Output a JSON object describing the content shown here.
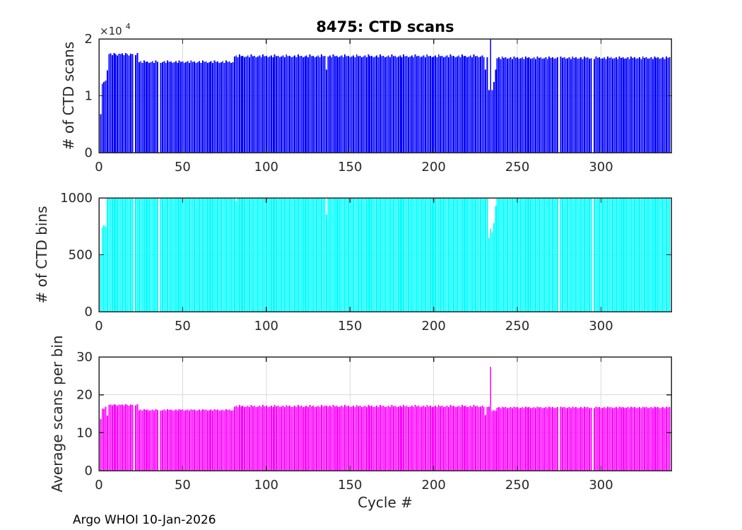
{
  "figure": {
    "credit": "Argo WHOI 10-Jan-2026",
    "background": "#ffffff",
    "colors": {
      "axis": "#262626",
      "grid": "#dbdbdb",
      "tick": "#262626"
    }
  },
  "chart_data": [
    {
      "type": "bar",
      "title": "8475: CTD scans",
      "ylabel": "# of CTD scans",
      "y_scale_label": {
        "base": "×10",
        "exponent": "4"
      },
      "bar_color": "#0000ff",
      "grid": true,
      "legend": "none",
      "xlim": [
        0,
        342
      ],
      "ylim": [
        0,
        20000
      ],
      "xticks": [
        0,
        50,
        100,
        150,
        200,
        250,
        300
      ],
      "yticks": [
        {
          "value": 0,
          "label": "0"
        },
        {
          "value": 10000,
          "label": "1"
        },
        {
          "value": 20000,
          "label": "2"
        }
      ],
      "x_range": {
        "first_cycle": 1,
        "last_cycle": 341
      },
      "encoding_note": "bar heights per cycle: each segment repeats its values list cyclically from cycle 'from' to 'to'; 'overrides' replace single cycles; 'missing_cycles' have no bar",
      "segments": [
        {
          "from": 1,
          "to": 1,
          "values": [
            6800
          ]
        },
        {
          "from": 2,
          "to": 2,
          "values": [
            12100
          ]
        },
        {
          "from": 3,
          "to": 3,
          "values": [
            12400
          ]
        },
        {
          "from": 4,
          "to": 4,
          "values": [
            12700
          ]
        },
        {
          "from": 5,
          "to": 5,
          "values": [
            14500
          ]
        },
        {
          "from": 6,
          "to": 23,
          "values": [
            17300,
            17450,
            17150,
            17500,
            17350,
            17100,
            17400
          ]
        },
        {
          "from": 24,
          "to": 80,
          "values": [
            15900,
            16100,
            15750,
            16200,
            15950,
            16050,
            15800
          ]
        },
        {
          "from": 81,
          "to": 230,
          "values": [
            16900,
            17100,
            16750,
            17250,
            16950,
            17050,
            16800
          ]
        },
        {
          "from": 231,
          "to": 231,
          "values": [
            14600
          ]
        },
        {
          "from": 232,
          "to": 232,
          "values": [
            16800
          ]
        },
        {
          "from": 233,
          "to": 233,
          "values": [
            11000
          ]
        },
        {
          "from": 234,
          "to": 234,
          "values": [
            20000
          ]
        },
        {
          "from": 235,
          "to": 235,
          "values": [
            11000
          ]
        },
        {
          "from": 236,
          "to": 236,
          "values": [
            12400
          ]
        },
        {
          "from": 237,
          "to": 237,
          "values": [
            14600
          ]
        },
        {
          "from": 238,
          "to": 341,
          "values": [
            16600,
            16800,
            16450,
            16900,
            16650,
            16750,
            16500
          ]
        }
      ],
      "overrides": {
        "136": 14600
      },
      "missing_cycles": [
        21,
        36,
        275,
        295
      ]
    },
    {
      "type": "bar",
      "title": "",
      "ylabel": "# of CTD bins",
      "bar_color": "#00ffff",
      "grid": true,
      "legend": "none",
      "xlim": [
        0,
        342
      ],
      "ylim": [
        0,
        1000
      ],
      "xticks": [
        0,
        50,
        100,
        150,
        200,
        250,
        300
      ],
      "yticks": [
        {
          "value": 0,
          "label": "0"
        },
        {
          "value": 500,
          "label": "500"
        },
        {
          "value": 1000,
          "label": "1000"
        }
      ],
      "x_range": {
        "first_cycle": 1,
        "last_cycle": 341
      },
      "encoding_note": "most cycles are capped at 1000 bins",
      "segments": [
        {
          "from": 1,
          "to": 1,
          "values": [
            500
          ]
        },
        {
          "from": 2,
          "to": 4,
          "values": [
            740,
            760,
            750
          ]
        },
        {
          "from": 5,
          "to": 341,
          "values": [
            1000
          ]
        }
      ],
      "overrides": {
        "82": 970,
        "136": 855,
        "233": 650,
        "234": 730,
        "235": 700,
        "236": 780,
        "237": 930
      },
      "missing_cycles": [
        21,
        36,
        275,
        295
      ]
    },
    {
      "type": "bar",
      "title": "",
      "ylabel": "Average scans per bin",
      "xlabel": "Cycle #",
      "bar_color": "#ff00ff",
      "grid": true,
      "legend": "none",
      "xlim": [
        0,
        342
      ],
      "ylim": [
        0,
        30
      ],
      "xticks": [
        0,
        50,
        100,
        150,
        200,
        250,
        300
      ],
      "yticks": [
        {
          "value": 0,
          "label": "0"
        },
        {
          "value": 10,
          "label": "10"
        },
        {
          "value": 20,
          "label": "20"
        },
        {
          "value": 30,
          "label": "30"
        }
      ],
      "x_range": {
        "first_cycle": 1,
        "last_cycle": 341
      },
      "encoding_note": "single spike of 27.4 at cycle 234",
      "segments": [
        {
          "from": 1,
          "to": 1,
          "values": [
            13.6
          ]
        },
        {
          "from": 2,
          "to": 2,
          "values": [
            16.4
          ]
        },
        {
          "from": 3,
          "to": 3,
          "values": [
            16.3
          ]
        },
        {
          "from": 4,
          "to": 4,
          "values": [
            16.9
          ]
        },
        {
          "from": 5,
          "to": 5,
          "values": [
            14.5
          ]
        },
        {
          "from": 6,
          "to": 23,
          "values": [
            17.3,
            17.4,
            17.2,
            17.5,
            17.3,
            17.1,
            17.4
          ]
        },
        {
          "from": 24,
          "to": 80,
          "values": [
            15.9,
            16.1,
            15.8,
            16.2,
            16.0,
            16.1,
            15.8
          ]
        },
        {
          "from": 81,
          "to": 230,
          "values": [
            16.9,
            17.1,
            16.8,
            17.3,
            17.0,
            17.1,
            16.8
          ]
        },
        {
          "from": 231,
          "to": 231,
          "values": [
            14.6
          ]
        },
        {
          "from": 232,
          "to": 232,
          "values": [
            16.8
          ]
        },
        {
          "from": 233,
          "to": 233,
          "values": [
            16.9
          ]
        },
        {
          "from": 234,
          "to": 234,
          "values": [
            27.4
          ]
        },
        {
          "from": 235,
          "to": 235,
          "values": [
            15.7
          ]
        },
        {
          "from": 236,
          "to": 236,
          "values": [
            15.9
          ]
        },
        {
          "from": 237,
          "to": 237,
          "values": [
            15.7
          ]
        },
        {
          "from": 238,
          "to": 341,
          "values": [
            16.6,
            16.8,
            16.5,
            16.9,
            16.7,
            16.8,
            16.5
          ]
        }
      ],
      "overrides": {
        "136": 17.1
      },
      "missing_cycles": [
        21,
        36,
        275,
        295
      ]
    }
  ]
}
